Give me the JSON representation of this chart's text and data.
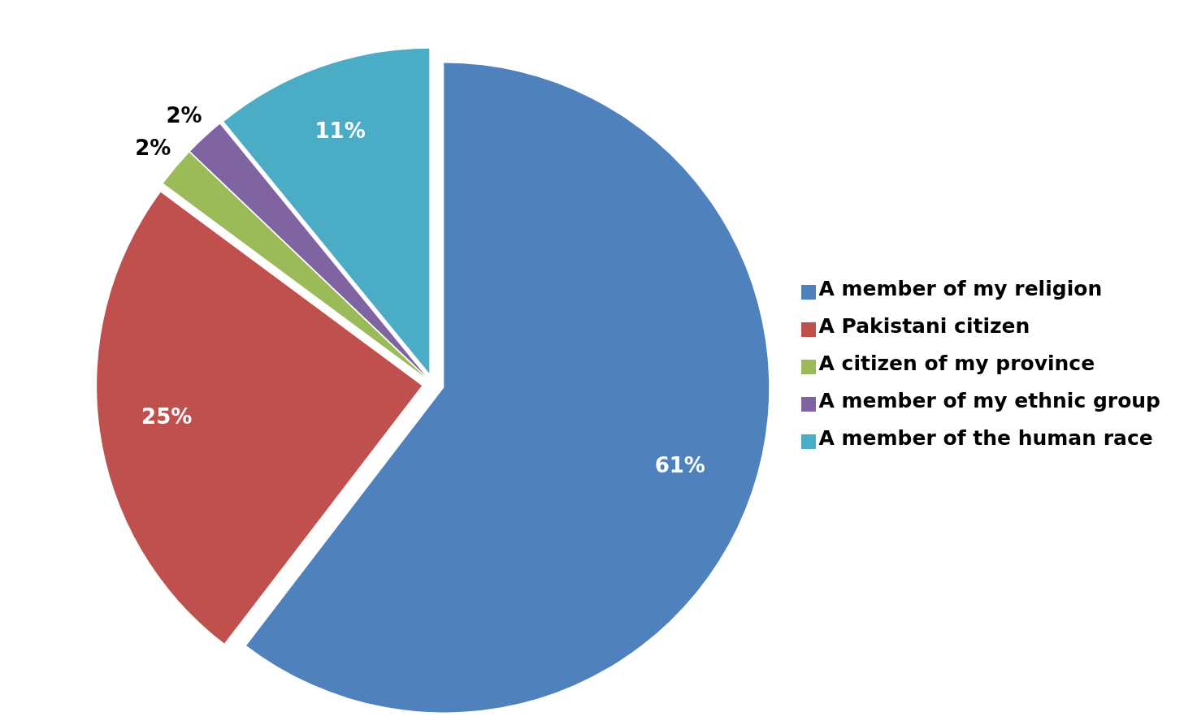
{
  "chart_data": {
    "type": "pie",
    "categories": [
      "A member of my religion",
      "A Pakistani citizen",
      "A citizen of my province",
      "A member of my ethnic group",
      "A member of the human race"
    ],
    "values": [
      61,
      25,
      2,
      2,
      11
    ],
    "value_labels": [
      "61%",
      "25%",
      "2%",
      "2%",
      "11%"
    ],
    "colors": [
      "#4f81bd",
      "#c0504d",
      "#9bbb59",
      "#8064a2",
      "#4bacc6"
    ],
    "legend": "right"
  }
}
